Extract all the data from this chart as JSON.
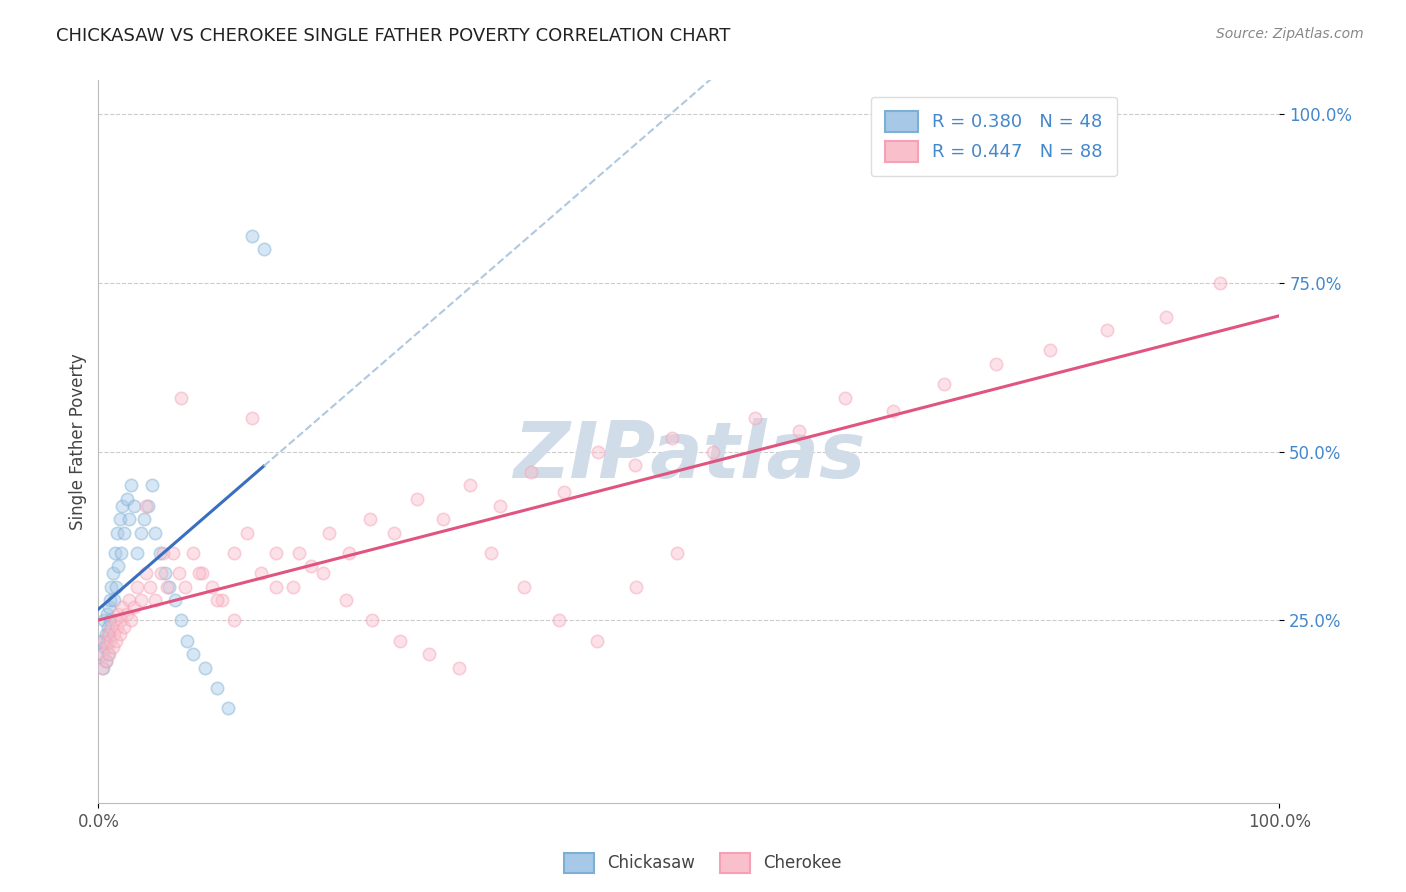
{
  "title": "CHICKASAW VS CHEROKEE SINGLE FATHER POVERTY CORRELATION CHART",
  "source": "Source: ZipAtlas.com",
  "ylabel": "Single Father Poverty",
  "chickasaw_R": 0.38,
  "chickasaw_N": 48,
  "cherokee_R": 0.447,
  "cherokee_N": 88,
  "chickasaw_color": "#7BAFD4",
  "cherokee_color": "#F4A0B5",
  "chickasaw_fill": "#A8C8E8",
  "cherokee_fill": "#F9C0CC",
  "chickasaw_line_color": "#3A6EBF",
  "cherokee_line_color": "#E05580",
  "dashed_line_color": "#B0C8E0",
  "watermark_color": "#D0DCE8",
  "background_color": "#FFFFFF",
  "grid_color": "#CCCCCC",
  "ytick_color": "#4488CC",
  "xlim": [
    0.0,
    1.0
  ],
  "ylim_min": -0.02,
  "ylim_max": 1.05,
  "ytick_positions": [
    0.25,
    0.5,
    0.75,
    1.0
  ],
  "ytick_labels": [
    "25.0%",
    "50.0%",
    "75.0%",
    "100.0%"
  ],
  "xtick_positions": [
    0.0,
    1.0
  ],
  "xtick_labels": [
    "0.0%",
    "100.0%"
  ],
  "marker_size": 80,
  "marker_alpha": 0.45,
  "marker_linewidth": 1.2
}
